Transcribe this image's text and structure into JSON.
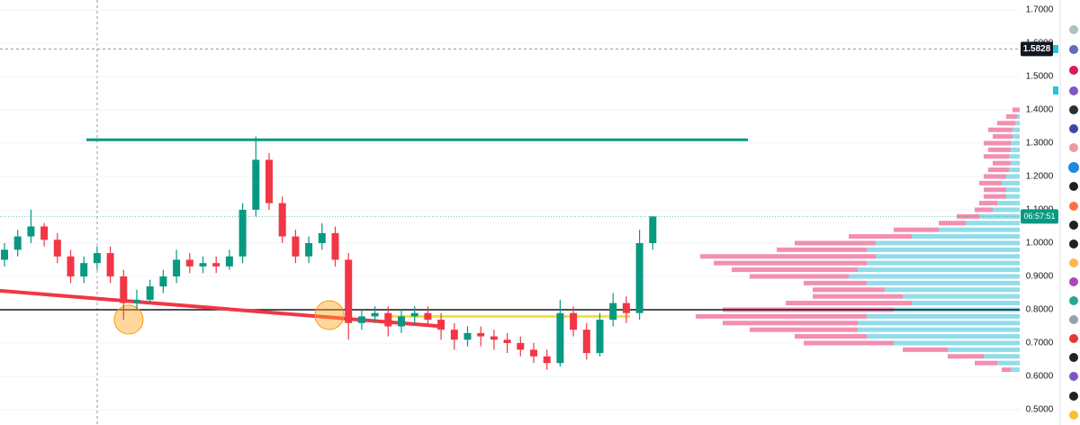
{
  "chart_data": {
    "type": "candlestick",
    "ylim": [
      0.454,
      1.7297
    ],
    "yticks": [
      {
        "value": 0.5,
        "label": "0.5000"
      },
      {
        "value": 0.6,
        "label": "0.6000"
      },
      {
        "value": 0.7,
        "label": "0.7000"
      },
      {
        "value": 0.8,
        "label": "0.8000"
      },
      {
        "value": 0.9,
        "label": "0.9000"
      },
      {
        "value": 1.0,
        "label": "1.0000"
      },
      {
        "value": 1.1,
        "label": "1.1000"
      },
      {
        "value": 1.2,
        "label": "1.2000"
      },
      {
        "value": 1.3,
        "label": "1.3000"
      },
      {
        "value": 1.4,
        "label": "1.4000"
      },
      {
        "value": 1.5,
        "label": "1.5000"
      },
      {
        "value": 1.6,
        "label": "1.6000"
      },
      {
        "value": 1.7,
        "label": "1.7000"
      }
    ],
    "grid": true,
    "up_color": "#089981",
    "down_color": "#f23645",
    "open": [
      0.95,
      0.98,
      1.02,
      1.05,
      1.01,
      0.96,
      0.9,
      0.94,
      0.97,
      0.9,
      0.82,
      0.83,
      0.87,
      0.9,
      0.95,
      0.93,
      0.94,
      0.93,
      0.96,
      1.1,
      1.25,
      1.12,
      1.02,
      0.96,
      1.0,
      1.03,
      0.95,
      0.76,
      0.78,
      0.79,
      0.75,
      0.78,
      0.79,
      0.77,
      0.74,
      0.71,
      0.73,
      0.72,
      0.71,
      0.7,
      0.68,
      0.66,
      0.64,
      0.79,
      0.74,
      0.67,
      0.77,
      0.82,
      0.79,
      1.0
    ],
    "high": [
      1.0,
      1.04,
      1.1,
      1.06,
      1.03,
      0.98,
      0.96,
      0.99,
      0.99,
      0.92,
      0.86,
      0.89,
      0.92,
      0.98,
      0.97,
      0.96,
      0.96,
      0.98,
      1.12,
      1.32,
      1.27,
      1.14,
      1.04,
      1.02,
      1.06,
      1.05,
      0.97,
      0.8,
      0.81,
      0.81,
      0.8,
      0.81,
      0.81,
      0.79,
      0.76,
      0.75,
      0.75,
      0.74,
      0.73,
      0.72,
      0.7,
      0.68,
      0.83,
      0.81,
      0.76,
      0.79,
      0.85,
      0.84,
      1.04,
      1.08
    ],
    "low": [
      0.93,
      0.96,
      1.0,
      0.99,
      0.94,
      0.88,
      0.88,
      0.92,
      0.88,
      0.77,
      0.8,
      0.82,
      0.85,
      0.88,
      0.91,
      0.91,
      0.91,
      0.92,
      0.94,
      1.08,
      1.1,
      1.0,
      0.94,
      0.94,
      0.98,
      0.93,
      0.71,
      0.74,
      0.76,
      0.72,
      0.73,
      0.76,
      0.75,
      0.71,
      0.68,
      0.69,
      0.69,
      0.68,
      0.67,
      0.66,
      0.64,
      0.62,
      0.63,
      0.72,
      0.65,
      0.66,
      0.75,
      0.76,
      0.77,
      0.98
    ],
    "close": [
      0.98,
      1.02,
      1.05,
      1.01,
      0.96,
      0.9,
      0.94,
      0.97,
      0.9,
      0.82,
      0.83,
      0.87,
      0.9,
      0.95,
      0.93,
      0.94,
      0.93,
      0.96,
      1.1,
      1.25,
      1.12,
      1.02,
      0.96,
      1.0,
      1.03,
      0.95,
      0.76,
      0.78,
      0.79,
      0.75,
      0.78,
      0.79,
      0.77,
      0.74,
      0.71,
      0.73,
      0.72,
      0.71,
      0.7,
      0.68,
      0.66,
      0.64,
      0.79,
      0.74,
      0.67,
      0.77,
      0.82,
      0.79,
      1.0,
      1.08
    ],
    "volume_profile": {
      "levels": [
        0.62,
        0.64,
        0.66,
        0.68,
        0.7,
        0.72,
        0.74,
        0.76,
        0.78,
        0.8,
        0.82,
        0.84,
        0.86,
        0.88,
        0.9,
        0.92,
        0.94,
        0.96,
        0.98,
        1.0,
        1.02,
        1.04,
        1.06,
        1.08,
        1.1,
        1.12,
        1.14,
        1.16,
        1.18,
        1.2,
        1.22,
        1.24,
        1.26,
        1.28,
        1.3,
        1.32,
        1.34,
        1.36,
        1.38,
        1.4
      ],
      "series": [
        {
          "name": "buy",
          "color": "#7fd6e6",
          "values": [
            10,
            25,
            40,
            80,
            140,
            170,
            180,
            180,
            170,
            140,
            120,
            130,
            150,
            170,
            190,
            180,
            170,
            160,
            170,
            160,
            120,
            90,
            60,
            45,
            30,
            25,
            15,
            15,
            20,
            15,
            12,
            10,
            12,
            10,
            10,
            8,
            8,
            5,
            3,
            0
          ]
        },
        {
          "name": "sell",
          "color": "#f07ba3",
          "values": [
            10,
            25,
            40,
            50,
            100,
            80,
            120,
            150,
            190,
            190,
            140,
            100,
            80,
            70,
            110,
            140,
            170,
            195,
            100,
            90,
            70,
            50,
            30,
            25,
            20,
            20,
            25,
            25,
            25,
            25,
            23,
            20,
            28,
            25,
            30,
            22,
            27,
            20,
            12,
            8
          ]
        }
      ]
    },
    "levels": [
      {
        "price": 1.31,
        "color": "#089981"
      },
      {
        "price": 0.8,
        "color": "#131722"
      },
      {
        "price": 0.78,
        "color": "#f5e13a"
      }
    ],
    "trendline": {
      "start": 0.857,
      "end": 0.751,
      "color": "#f23645"
    },
    "crosshair_price": 1.5828,
    "countdown": "06:57:51"
  }
}
